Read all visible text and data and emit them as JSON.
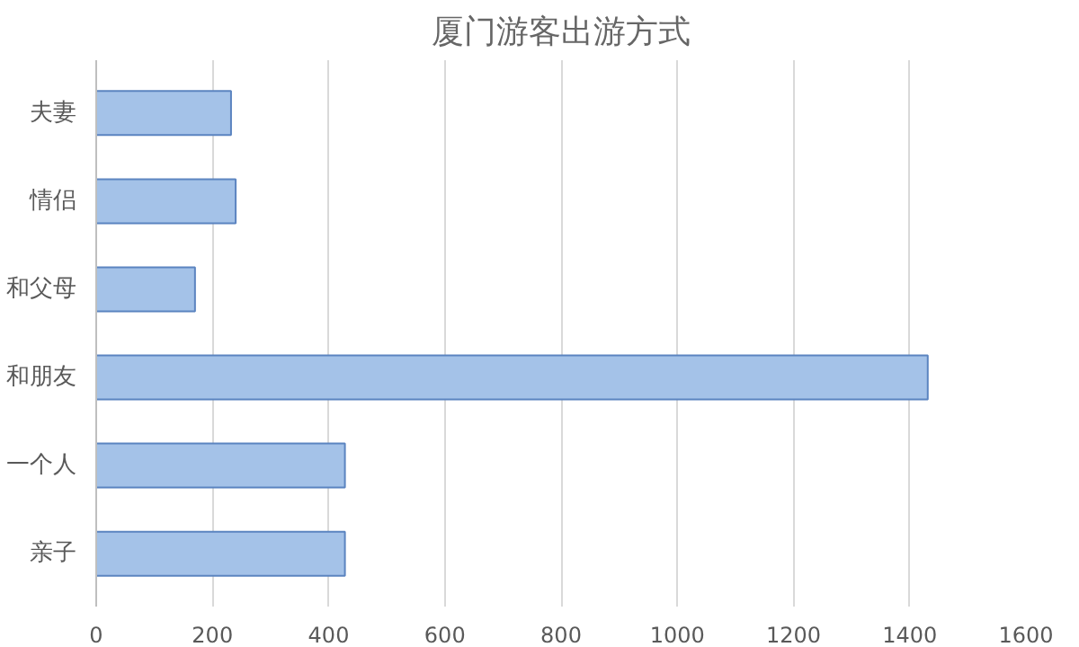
{
  "chart_data": {
    "type": "bar",
    "orientation": "horizontal",
    "title": "厦门游客出游方式",
    "categories": [
      "夫妻",
      "情侣",
      "和父母",
      "和朋友",
      "一个人",
      "亲子"
    ],
    "values": [
      232,
      240,
      170,
      1431,
      428,
      428
    ],
    "color": "#a4c2e8",
    "xlim": [
      0,
      1600
    ],
    "xticks": [
      0,
      200,
      400,
      600,
      800,
      1000,
      1200,
      1400,
      1600
    ],
    "grid": "x"
  }
}
